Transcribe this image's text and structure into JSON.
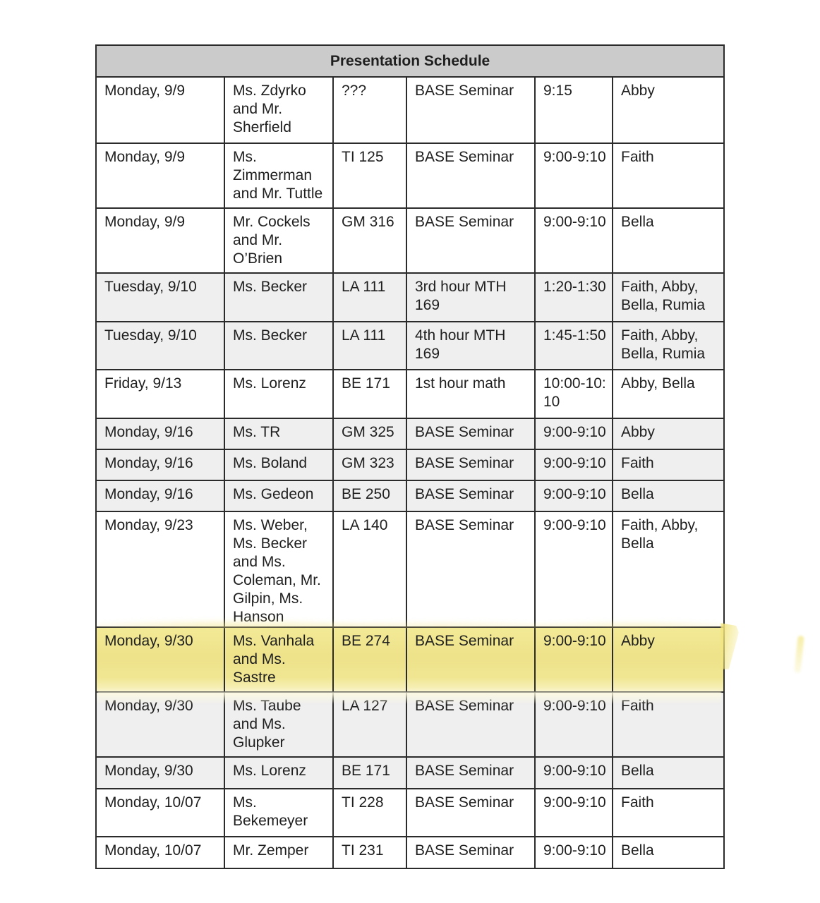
{
  "table": {
    "title": "Presentation Schedule",
    "columns": [
      "date",
      "teachers",
      "room",
      "class",
      "time",
      "students"
    ],
    "rows": [
      {
        "date": "Monday, 9/9",
        "teachers": "Ms. Zdyrko\nand Mr.\nSherfield",
        "room": "???",
        "class": "BASE Seminar",
        "time": "9:15",
        "students": "Abby",
        "shade": "white"
      },
      {
        "date": "Monday, 9/9",
        "teachers": "Ms.\nZimmerman\nand Mr. Tuttle",
        "room": "TI 125",
        "class": "BASE Seminar",
        "time": "9:00-9:10",
        "students": "Faith",
        "shade": "white"
      },
      {
        "date": "Monday, 9/9",
        "teachers": "Mr. Cockels\nand Mr.\nO’Brien",
        "room": "GM 316",
        "class": "BASE Seminar",
        "time": "9:00-9:10",
        "students": "Bella",
        "shade": "white"
      },
      {
        "date": "Tuesday, 9/10",
        "teachers": "Ms. Becker",
        "room": "LA 111",
        "class": "3rd hour MTH\n169",
        "time": "1:20-1:30",
        "students": "Faith, Abby,\nBella, Rumia",
        "shade": "gray"
      },
      {
        "date": "Tuesday, 9/10",
        "teachers": "Ms. Becker",
        "room": "LA 111",
        "class": "4th hour MTH\n169",
        "time": "1:45-1:50",
        "students": "Faith, Abby,\nBella, Rumia",
        "shade": "gray"
      },
      {
        "date": "Friday, 9/13",
        "teachers": "Ms. Lorenz",
        "room": "BE 171",
        "class": "1st hour math",
        "time": "10:00-10:\n10",
        "students": "Abby, Bella",
        "shade": "white"
      },
      {
        "date": "Monday, 9/16",
        "teachers": "Ms. TR",
        "room": "GM 325",
        "class": "BASE Seminar",
        "time": "9:00-9:10",
        "students": "Abby",
        "shade": "gray"
      },
      {
        "date": "Monday, 9/16",
        "teachers": "Ms. Boland",
        "room": "GM 323",
        "class": "BASE Seminar",
        "time": "9:00-9:10",
        "students": "Faith",
        "shade": "gray"
      },
      {
        "date": "Monday, 9/16",
        "teachers": "Ms. Gedeon",
        "room": "BE 250",
        "class": "BASE Seminar",
        "time": "9:00-9:10",
        "students": "Bella",
        "shade": "gray"
      },
      {
        "date": "Monday, 9/23",
        "teachers": "Ms. Weber,\nMs. Becker\nand Ms.\nColeman, Mr.\nGilpin, Ms.\nHanson",
        "room": "LA 140",
        "class": "BASE Seminar",
        "time": "9:00-9:10",
        "students": "Faith, Abby,\nBella",
        "shade": "white"
      },
      {
        "date": "Monday, 9/30",
        "teachers": "Ms. Vanhala\nand Ms.\nSastre",
        "room": "BE 274",
        "class": "BASE Seminar",
        "time": "9:00-9:10",
        "students": "Abby",
        "shade": "highlight"
      },
      {
        "date": "Monday, 9/30",
        "teachers": "Ms. Taube\nand Ms.\nGlupker",
        "room": "LA 127",
        "class": "BASE Seminar",
        "time": "9:00-9:10",
        "students": "Faith",
        "shade": "gray"
      },
      {
        "date": "Monday, 9/30",
        "teachers": "Ms. Lorenz",
        "room": "BE 171",
        "class": "BASE Seminar",
        "time": "9:00-9:10",
        "students": "Bella",
        "shade": "gray"
      },
      {
        "date": "Monday, 10/07",
        "teachers": "Ms.\nBekemeyer",
        "room": "TI 228",
        "class": "BASE Seminar",
        "time": "9:00-9:10",
        "students": "Faith",
        "shade": "white"
      },
      {
        "date": "Monday, 10/07",
        "teachers": "Mr. Zemper",
        "room": "TI 231",
        "class": "BASE Seminar",
        "time": "9:00-9:10",
        "students": "Bella",
        "shade": "white"
      }
    ]
  },
  "colors": {
    "header_bg": "#cbcbcb",
    "row_gray": "#efefef",
    "highlight_yellow": "#f0e58e",
    "border": "#2b2b2b",
    "text": "#1f1f1f"
  }
}
